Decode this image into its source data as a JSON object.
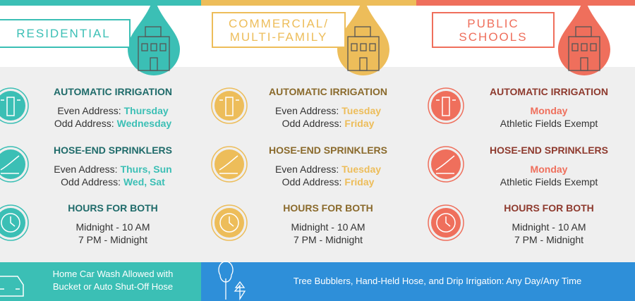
{
  "columns": [
    {
      "title_lines": [
        "RESIDENTIAL"
      ],
      "color": "#3bbfb5",
      "heading_color": "#1f6b6a",
      "sections": [
        {
          "heading": "AUTOMATIC IRRIGATION",
          "lines": [
            {
              "label": "Even Address:",
              "value": "Thursday"
            },
            {
              "label": "Odd Address:",
              "value": "Wednesday"
            }
          ]
        },
        {
          "heading": "HOSE-END SPRINKLERS",
          "lines": [
            {
              "label": "Even Address:",
              "value": "Thurs, Sun"
            },
            {
              "label": "Odd Address:",
              "value": "Wed, Sat"
            }
          ]
        },
        {
          "heading": "HOURS FOR BOTH",
          "lines": [
            {
              "label": "Midnight - 10 AM"
            },
            {
              "label": "7 PM - Midnight"
            }
          ]
        }
      ]
    },
    {
      "title_lines": [
        "COMMERCIAL/",
        "MULTI-FAMILY"
      ],
      "color": "#edbd5a",
      "heading_color": "#8a6a2c",
      "sections": [
        {
          "heading": "AUTOMATIC IRRIGATION",
          "lines": [
            {
              "label": "Even Address:",
              "value": "Tuesday"
            },
            {
              "label": "Odd Address:",
              "value": "Friday"
            }
          ]
        },
        {
          "heading": "HOSE-END SPRINKLERS",
          "lines": [
            {
              "label": "Even Address:",
              "value": "Tuesday"
            },
            {
              "label": "Odd Address:",
              "value": "Friday"
            }
          ]
        },
        {
          "heading": "HOURS FOR BOTH",
          "lines": [
            {
              "label": "Midnight - 10 AM"
            },
            {
              "label": "7 PM - Midnight"
            }
          ]
        }
      ]
    },
    {
      "title_lines": [
        "PUBLIC",
        "SCHOOLS"
      ],
      "color": "#ef6f5c",
      "heading_color": "#8e3a2e",
      "sections": [
        {
          "heading": "AUTOMATIC IRRIGATION",
          "lines": [
            {
              "value": "Monday"
            },
            {
              "label": "Athletic Fields Exempt"
            }
          ]
        },
        {
          "heading": "HOSE-END SPRINKLERS",
          "lines": [
            {
              "value": "Monday"
            },
            {
              "label": "Athletic Fields Exempt"
            }
          ]
        },
        {
          "heading": "HOURS FOR BOTH",
          "lines": [
            {
              "label": "Midnight - 10 AM"
            },
            {
              "label": "7 PM - Midnight"
            }
          ]
        }
      ]
    }
  ],
  "footer": {
    "left_lines": [
      "Home Car Wash Allowed with",
      "Bucket or Auto Shut-Off Hose"
    ],
    "left_color": "#3bbfb5",
    "right": "Tree Bubblers, Hand-Held Hose, and Drip Irrigation: Any Day/Any Time",
    "right_color": "#2e8fd9"
  }
}
